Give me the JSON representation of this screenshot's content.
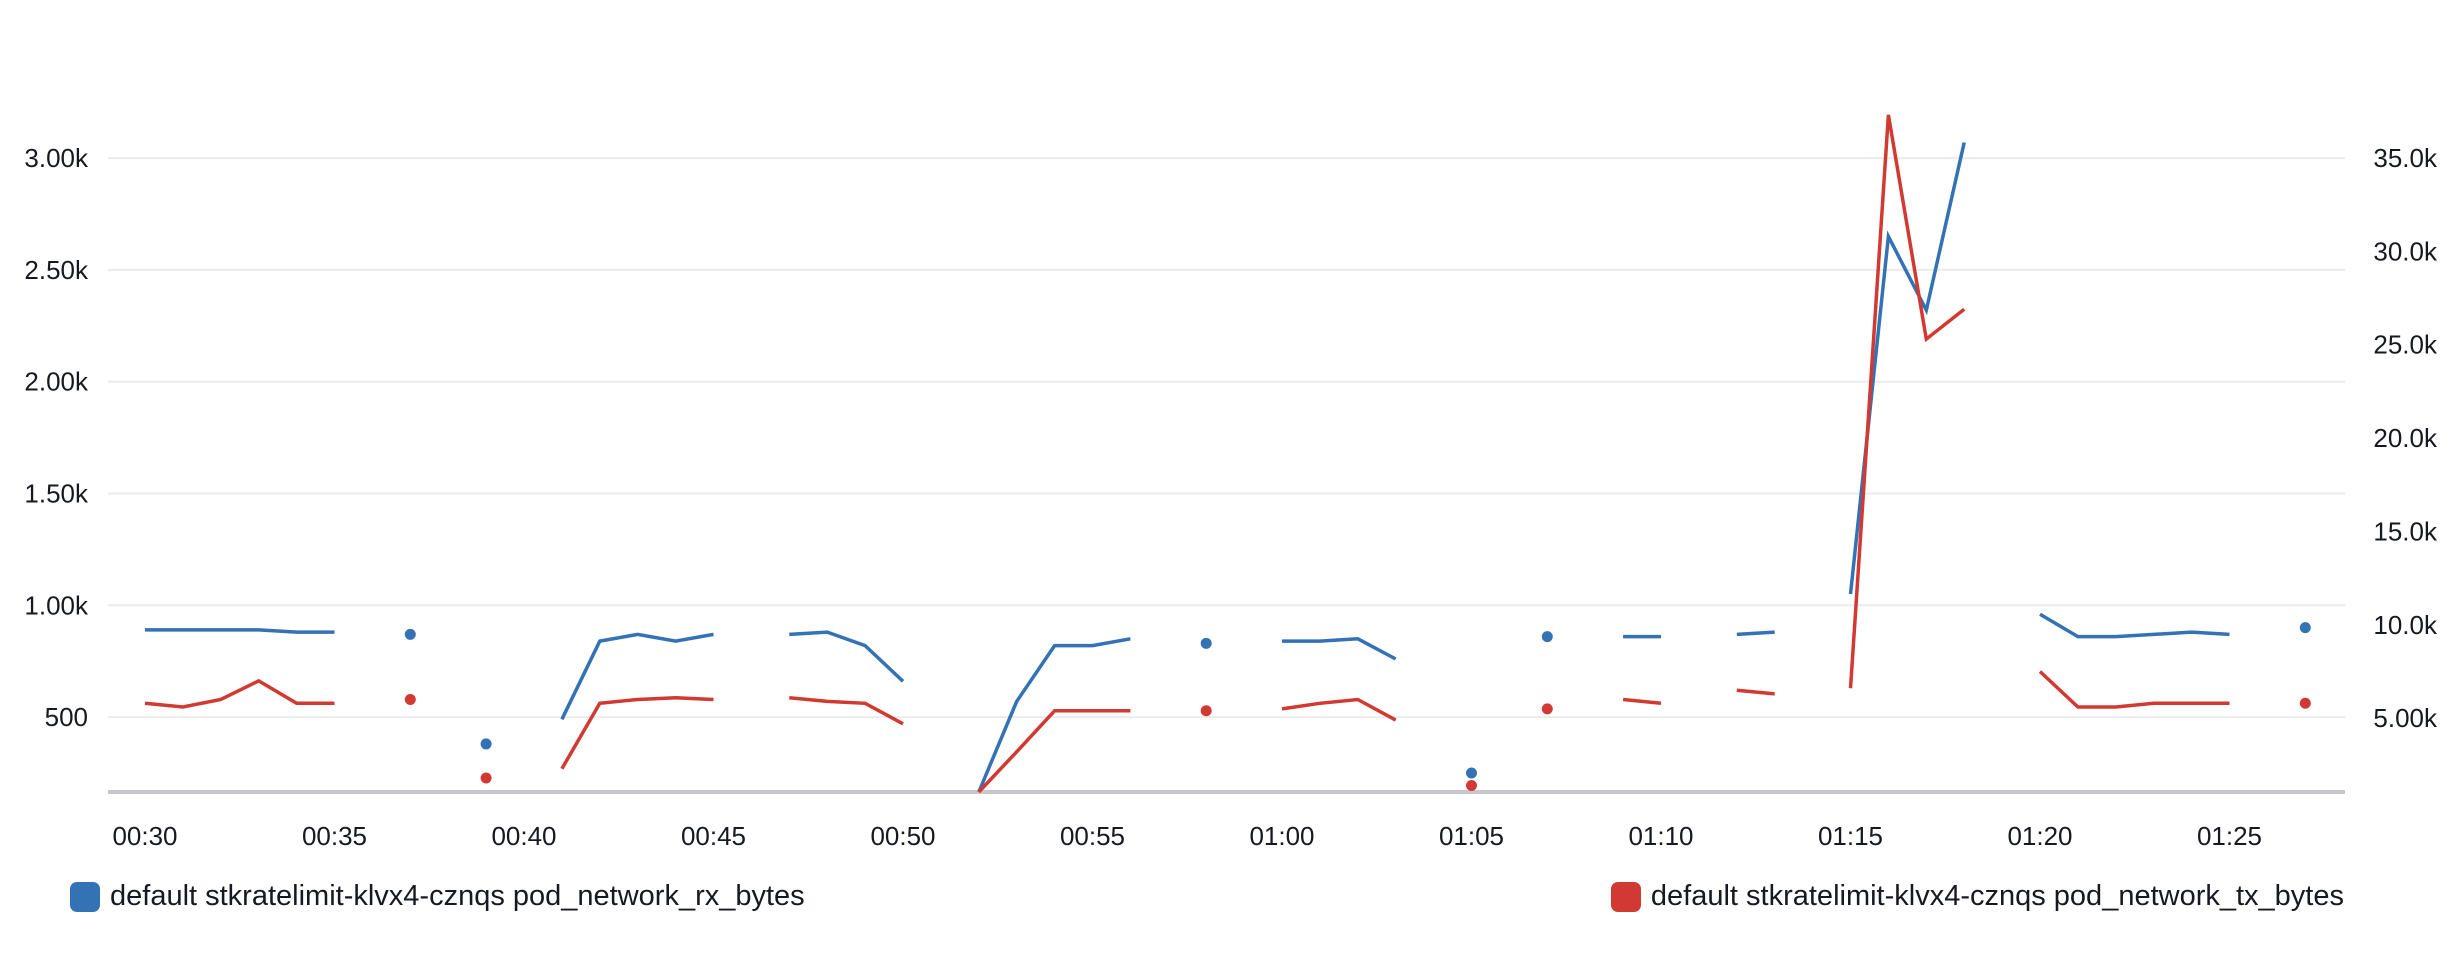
{
  "chart_data": {
    "type": "line",
    "x_ticks": [
      "00:30",
      "00:35",
      "00:40",
      "00:45",
      "00:50",
      "00:55",
      "01:00",
      "01:05",
      "01:10",
      "01:15",
      "01:20",
      "01:25"
    ],
    "x": [
      "00:30",
      "00:31",
      "00:32",
      "00:33",
      "00:34",
      "00:35",
      "00:36",
      "00:37",
      "00:38",
      "00:39",
      "00:40",
      "00:41",
      "00:42",
      "00:43",
      "00:44",
      "00:45",
      "00:46",
      "00:47",
      "00:48",
      "00:49",
      "00:50",
      "00:51",
      "00:52",
      "00:53",
      "00:54",
      "00:55",
      "00:56",
      "00:57",
      "00:58",
      "00:59",
      "01:00",
      "01:01",
      "01:02",
      "01:03",
      "01:04",
      "01:05",
      "01:06",
      "01:07",
      "01:08",
      "01:09",
      "01:10",
      "01:11",
      "01:12",
      "01:13",
      "01:14",
      "01:15",
      "01:16",
      "01:17",
      "01:18",
      "01:19",
      "01:20",
      "01:21",
      "01:22",
      "01:23",
      "01:24",
      "01:25",
      "01:26",
      "01:27"
    ],
    "y_left": {
      "ticks": [
        500,
        1000,
        1500,
        2000,
        2500,
        3000
      ],
      "tick_labels": [
        "500",
        "1.00k",
        "1.50k",
        "2.00k",
        "2.50k",
        "3.00k"
      ],
      "ylim": [
        165,
        3260
      ]
    },
    "y_right": {
      "ticks": [
        5000,
        10000,
        15000,
        20000,
        25000,
        30000,
        35000
      ],
      "tick_labels": [
        "5.00k",
        "10.0k",
        "15.0k",
        "20.0k",
        "25.0k",
        "30.0k",
        "35.0k"
      ],
      "ylim": [
        1050,
        38100
      ]
    },
    "series": [
      {
        "name": "default stkratelimit-klvx4-cznqs pod_network_rx_bytes",
        "axis": "left",
        "color": "#3372b5",
        "values": [
          890,
          890,
          890,
          890,
          880,
          880,
          null,
          870,
          null,
          380,
          null,
          490,
          840,
          870,
          840,
          870,
          null,
          870,
          880,
          820,
          660,
          null,
          165,
          570,
          820,
          820,
          850,
          null,
          830,
          null,
          840,
          840,
          850,
          760,
          null,
          250,
          null,
          860,
          null,
          860,
          860,
          null,
          870,
          880,
          null,
          1050,
          2650,
          2320,
          3070,
          null,
          960,
          860,
          860,
          870,
          880,
          870,
          null,
          900
        ]
      },
      {
        "name": "default stkratelimit-klvx4-cznqs pod_network_tx_bytes",
        "axis": "right",
        "color": "#d13a32",
        "values": [
          5800,
          5600,
          6000,
          7000,
          5800,
          5800,
          null,
          6000,
          null,
          1800,
          null,
          2300,
          5800,
          6000,
          6100,
          6000,
          null,
          6100,
          5900,
          5800,
          4700,
          null,
          1050,
          3200,
          5400,
          5400,
          5400,
          null,
          5400,
          null,
          5500,
          5800,
          6000,
          4900,
          null,
          1400,
          null,
          5500,
          null,
          6000,
          5800,
          null,
          6500,
          6300,
          null,
          6600,
          37300,
          25300,
          26900,
          null,
          7500,
          5600,
          5600,
          5800,
          5800,
          5800,
          null,
          5800
        ]
      }
    ]
  }
}
